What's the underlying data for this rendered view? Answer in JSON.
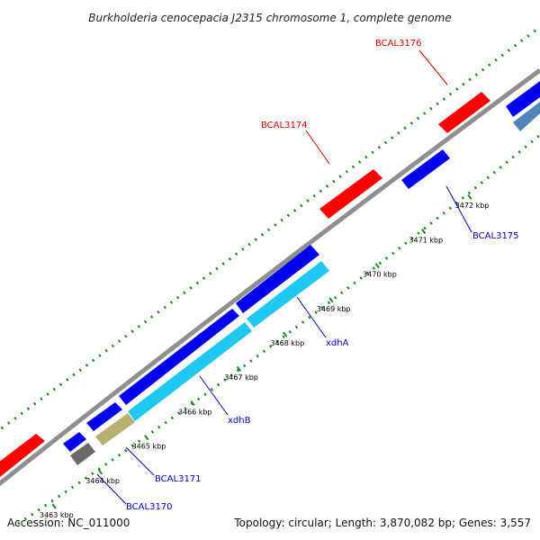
{
  "title": "Burkholderia cenocepacia J2315 chromosome 1, complete genome",
  "footer": {
    "accession": "Accession: NC_011000",
    "summary": "Topology: circular; Length: 3,870,082 bp; Genes: 3,557"
  },
  "colors": {
    "backbone": "#8f8f8f",
    "dots": "#1a8a1a",
    "forward_gene": "#ff0000",
    "reverse_gene": "#0000ee",
    "cds_cyan": "#1ec8f0",
    "cds_olive": "#b8b070",
    "cds_gray": "#6a6a6a",
    "cds_steel": "#4f86b8",
    "label_forward": "#e00000",
    "label_reverse": "#0000cc"
  },
  "scale_ticks": [
    {
      "label": "3463 kbp",
      "pos": 0.0
    },
    {
      "label": "3464 kbp",
      "pos": 0.1
    },
    {
      "label": "3465 kbp",
      "pos": 0.2
    },
    {
      "label": "3466 kbp",
      "pos": 0.3
    },
    {
      "label": "3467 kbp",
      "pos": 0.4
    },
    {
      "label": "3468 kbp",
      "pos": 0.5
    },
    {
      "label": "3469 kbp",
      "pos": 0.6
    },
    {
      "label": "3470 kbp",
      "pos": 0.7
    },
    {
      "label": "3471 kbp",
      "pos": 0.8
    },
    {
      "label": "3472 kbp",
      "pos": 0.9
    }
  ],
  "gene_labels": {
    "bcal3176": "BCAL3176",
    "bcal3174": "BCAL3174",
    "bcal3175": "BCAL3175",
    "xdha": "xdhA",
    "xdhb": "xdhB",
    "bcal3171": "BCAL3171",
    "bcal3170": "BCAL3170"
  }
}
